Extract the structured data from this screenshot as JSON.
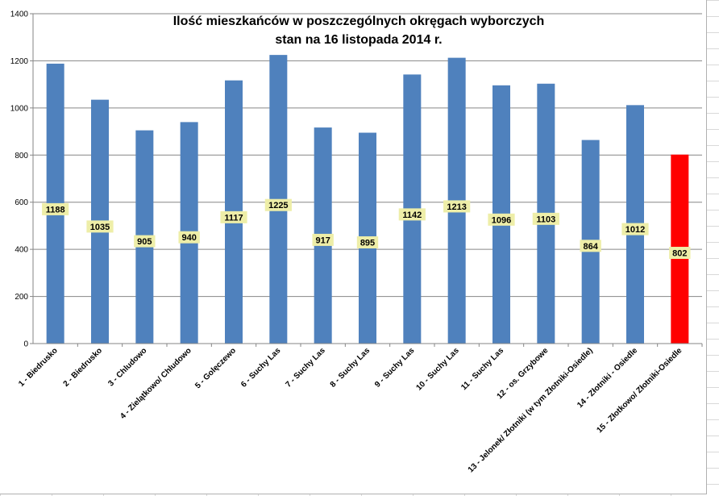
{
  "chart_data": {
    "type": "bar",
    "title": "Ilość mieszkańców w poszczególnych okręgach wyborczych",
    "subtitle": "stan na 16 listopada 2014 r.",
    "categories": [
      "1 - Biedrusko",
      "2 - Biedrusko",
      "3 - Chludowo",
      "4 - Zielątkowo/ Chludowo",
      "5 - Golęczewo",
      "6 - Suchy Las",
      "7 - Suchy Las",
      "8 - Suchy Las",
      "9 - Suchy Las",
      "10 - Suchy Las",
      "11 - Suchy Las",
      "12 - os. Grzybowe",
      "13 - Jelonek/ Złotniki (w tym Złotniki-Osiedle)",
      "14 - Złotniki - Osiedle",
      "15 - Złotkowo/ Złotniki-Osiedle"
    ],
    "values": [
      1188,
      1035,
      905,
      940,
      1117,
      1225,
      917,
      895,
      1142,
      1213,
      1096,
      1103,
      864,
      1012,
      802
    ],
    "data_labels": [
      "1188",
      "1035",
      "905",
      "940",
      "1117",
      "1225",
      "917",
      "895",
      "1142",
      "1213",
      "1096",
      "1103",
      "864",
      "1012",
      "802"
    ],
    "bar_colors": [
      "#4f81bd",
      "#4f81bd",
      "#4f81bd",
      "#4f81bd",
      "#4f81bd",
      "#4f81bd",
      "#4f81bd",
      "#4f81bd",
      "#4f81bd",
      "#4f81bd",
      "#4f81bd",
      "#4f81bd",
      "#4f81bd",
      "#4f81bd",
      "#ff0000"
    ],
    "data_label_background": "#eeeea8",
    "ylim": [
      0,
      1400
    ],
    "yticks": [
      0,
      200,
      400,
      600,
      800,
      1000,
      1200,
      1400
    ],
    "ytick_labels": [
      "0",
      "200",
      "400",
      "600",
      "800",
      "1000",
      "1200",
      "1400"
    ],
    "grid": true,
    "grid_color": "#868686",
    "legend": false
  }
}
